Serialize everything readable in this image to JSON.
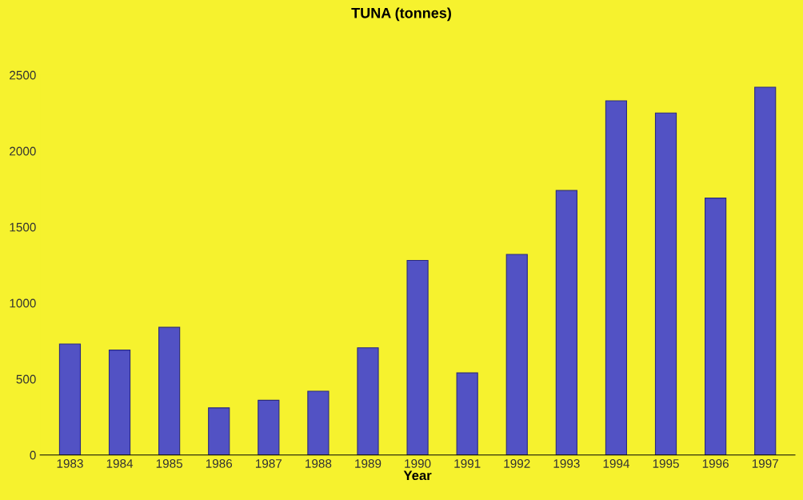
{
  "chart_data": {
    "type": "bar",
    "title": "TUNA (tonnes)",
    "xlabel": "Year",
    "categories": [
      "1983",
      "1984",
      "1985",
      "1986",
      "1987",
      "1988",
      "1989",
      "1990",
      "1991",
      "1992",
      "1993",
      "1994",
      "1995",
      "1996",
      "1997"
    ],
    "values": [
      730,
      690,
      840,
      310,
      360,
      420,
      705,
      1280,
      540,
      1320,
      1740,
      2330,
      2250,
      1690,
      2420
    ],
    "color": "#5252c4",
    "ylim": [
      0,
      2500
    ],
    "yticks": [
      0,
      500,
      1000,
      1500,
      2000,
      2500
    ],
    "grid": false,
    "legend": false
  }
}
